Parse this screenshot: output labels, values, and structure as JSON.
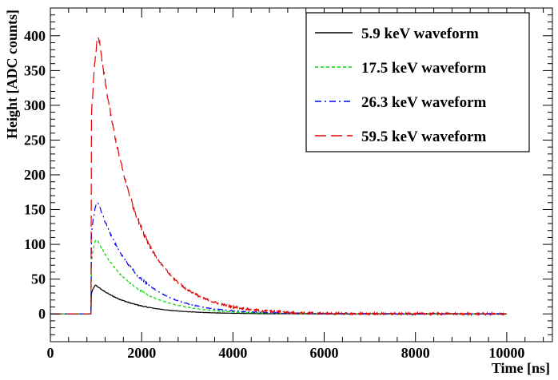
{
  "chart_data": {
    "type": "line",
    "title": "",
    "xlabel": "Time [ns]",
    "ylabel": "Height [ADC counts]",
    "xlim": [
      0,
      11000
    ],
    "ylim": [
      -40,
      440
    ],
    "xticks_major": [
      0,
      2000,
      4000,
      6000,
      8000,
      10000
    ],
    "xtick_labels": [
      "0",
      "2000",
      "4000",
      "6000",
      "8000",
      "10000"
    ],
    "yticks_major": [
      0,
      50,
      100,
      150,
      200,
      250,
      300,
      350,
      400
    ],
    "ytick_labels": [
      "0",
      "50",
      "100",
      "150",
      "200",
      "250",
      "300",
      "350",
      "400"
    ],
    "grid": false,
    "legend_position": "top-right",
    "pulse_start_ns": 900,
    "record_end_ns": 10000,
    "series": [
      {
        "name": "5.9 keV waveform",
        "color": "#000000",
        "dash": "solid",
        "peak_time_ns": 1000,
        "peak_height": 41,
        "decay_ns": 780
      },
      {
        "name": "17.5 keV waveform",
        "color": "#00dd00",
        "dash": "short-dash",
        "peak_time_ns": 1020,
        "peak_height": 107,
        "decay_ns": 820
      },
      {
        "name": "26.3 keV waveform",
        "color": "#0000ff",
        "dash": "dash-dot",
        "peak_time_ns": 1040,
        "peak_height": 161,
        "decay_ns": 820
      },
      {
        "name": "59.5 keV waveform",
        "color": "#e00000",
        "dash": "long-dash",
        "peak_time_ns": 1060,
        "peak_height": 398,
        "decay_ns": 800
      }
    ]
  }
}
